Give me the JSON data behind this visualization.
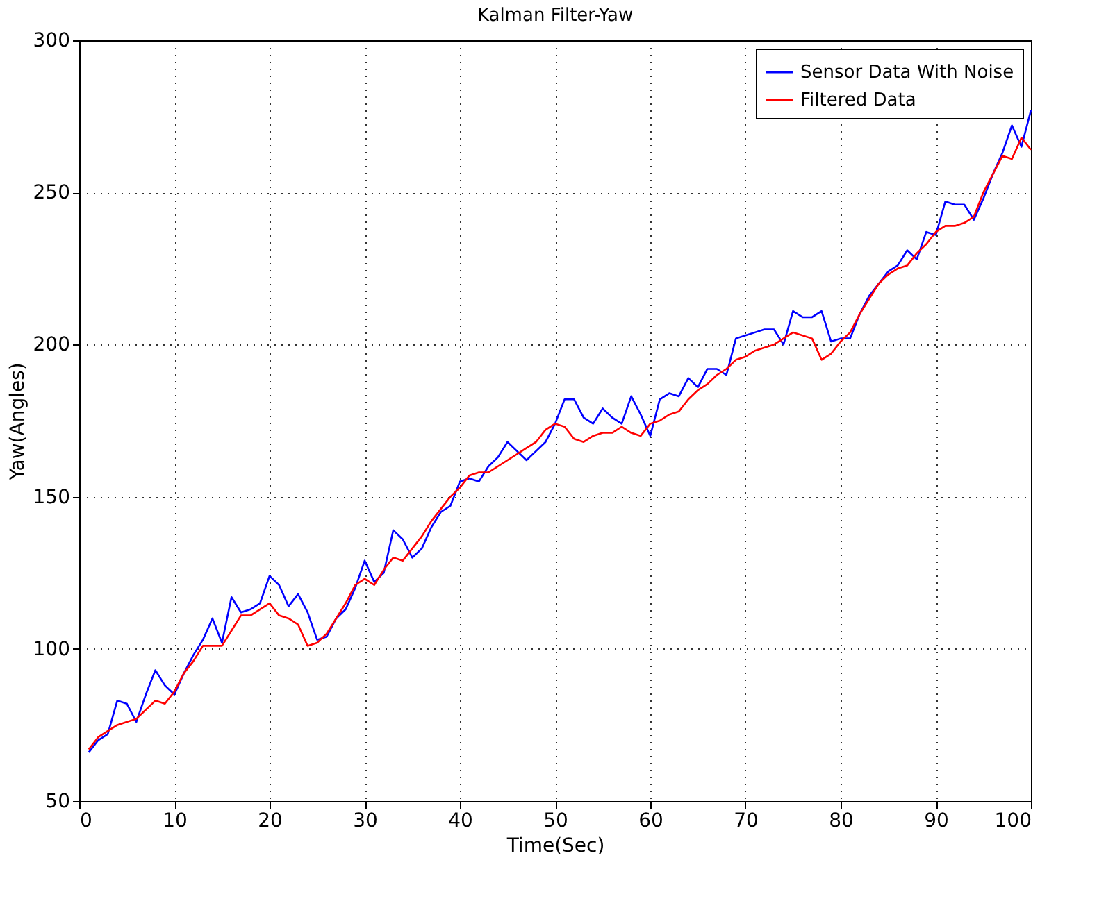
{
  "chart_data": {
    "type": "line",
    "title": "Kalman Filter-Yaw",
    "xlabel": "Time(Sec)",
    "ylabel": "Yaw(Angles)",
    "x": [
      1,
      2,
      3,
      4,
      5,
      6,
      7,
      8,
      9,
      10,
      11,
      12,
      13,
      14,
      15,
      16,
      17,
      18,
      19,
      20,
      21,
      22,
      23,
      24,
      25,
      26,
      27,
      28,
      29,
      30,
      31,
      32,
      33,
      34,
      35,
      36,
      37,
      38,
      39,
      40,
      41,
      42,
      43,
      44,
      45,
      46,
      47,
      48,
      49,
      50,
      51,
      52,
      53,
      54,
      55,
      56,
      57,
      58,
      59,
      60,
      61,
      62,
      63,
      64,
      65,
      66,
      67,
      68,
      69,
      70,
      71,
      72,
      73,
      74,
      75,
      76,
      77,
      78,
      79,
      80,
      81,
      82,
      83,
      84,
      85,
      86,
      87,
      88,
      89,
      90,
      91,
      92,
      93,
      94,
      95,
      96,
      97,
      98,
      99,
      100
    ],
    "series": [
      {
        "name": "Sensor Data With Noise",
        "color": "#0000ff",
        "values": [
          66,
          70,
          72,
          83,
          82,
          76,
          85,
          93,
          88,
          85,
          92,
          98,
          103,
          110,
          102,
          117,
          112,
          113,
          115,
          124,
          121,
          114,
          118,
          112,
          103,
          104,
          110,
          113,
          120,
          129,
          122,
          125,
          139,
          136,
          130,
          133,
          140,
          145,
          147,
          155,
          156,
          155,
          160,
          163,
          168,
          165,
          162,
          165,
          168,
          174,
          182,
          182,
          176,
          174,
          179,
          176,
          174,
          183,
          177,
          170,
          182,
          184,
          183,
          189,
          186,
          192,
          192,
          190,
          202,
          203,
          204,
          205,
          205,
          200,
          211,
          209,
          209,
          211,
          201,
          202,
          202,
          210,
          216,
          220,
          224,
          226,
          231,
          228,
          237,
          236,
          247,
          246,
          246,
          241,
          248,
          256,
          263,
          272,
          265,
          277
        ]
      },
      {
        "name": "Filtered Data",
        "color": "#ff0000",
        "values": [
          67,
          71,
          73,
          75,
          76,
          77,
          80,
          83,
          82,
          86,
          92,
          96,
          101,
          101,
          101,
          106,
          111,
          111,
          113,
          115,
          111,
          110,
          108,
          101,
          102,
          105,
          110,
          115,
          121,
          123,
          121,
          126,
          130,
          129,
          133,
          137,
          142,
          146,
          150,
          153,
          157,
          158,
          158,
          160,
          162,
          164,
          166,
          168,
          172,
          174,
          173,
          169,
          168,
          170,
          171,
          171,
          173,
          171,
          170,
          174,
          175,
          177,
          178,
          182,
          185,
          187,
          190,
          192,
          195,
          196,
          198,
          199,
          200,
          202,
          204,
          203,
          202,
          195,
          197,
          201,
          204,
          210,
          215,
          220,
          223,
          225,
          226,
          230,
          233,
          237,
          239,
          239,
          240,
          242,
          250,
          256,
          262,
          261,
          268,
          264
        ]
      }
    ],
    "xlim": [
      0,
      100
    ],
    "xticks": [
      0,
      10,
      20,
      30,
      40,
      50,
      60,
      70,
      80,
      90,
      100
    ],
    "ylim": [
      50,
      300
    ],
    "yticks": [
      50,
      100,
      150,
      200,
      250,
      300
    ],
    "grid": true,
    "legend": "top right",
    "line_style": "solid",
    "marker": "none"
  }
}
